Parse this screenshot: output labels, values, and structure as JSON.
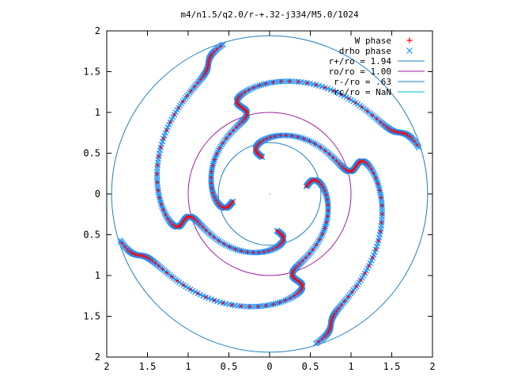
{
  "chart_data": {
    "type": "scatter",
    "title": "m4/n1.5/q2.0/r-+.32-j334/M5.0/1024",
    "xlim": [
      -2,
      2
    ],
    "ylim": [
      -2,
      2
    ],
    "x_tick_labels": [
      "2",
      "1.5",
      "1",
      "0.5",
      "0",
      "0.5",
      "1",
      "1.5",
      "2"
    ],
    "y_tick_labels": [
      "2",
      "1.5",
      "1",
      "0.5",
      "0",
      "0.5",
      "1",
      "1.5",
      "2"
    ],
    "grid": false,
    "legend_position": "top-right",
    "colors": {
      "w_phase": "#ff0000",
      "drho_phase": "#1e90ff",
      "r_plus": "#1f7fbf",
      "ro": "#a020a0",
      "r_minus": "#1a80c0",
      "rc": "#00c0d0"
    },
    "series": [
      {
        "name": "W phase",
        "marker": "+",
        "kind": "points"
      },
      {
        "name": "drho phase",
        "marker": "x",
        "kind": "points"
      },
      {
        "name": "r+/ro = 1.94",
        "kind": "circle",
        "radius": 1.94
      },
      {
        "name": "ro/ro = 1.00",
        "kind": "circle",
        "radius": 1.0
      },
      {
        "name": "r-/ro = .63",
        "kind": "circle",
        "radius": 0.63
      },
      {
        "name": "rc/ro = NaN",
        "kind": "circle",
        "radius": null
      }
    ],
    "spiral": {
      "arms": 4,
      "r_inner": 0.46,
      "r_outer": 1.92,
      "wave_amplitude": 0.42,
      "wave_cycles": 2.2,
      "twist_radians": 3.2
    }
  }
}
